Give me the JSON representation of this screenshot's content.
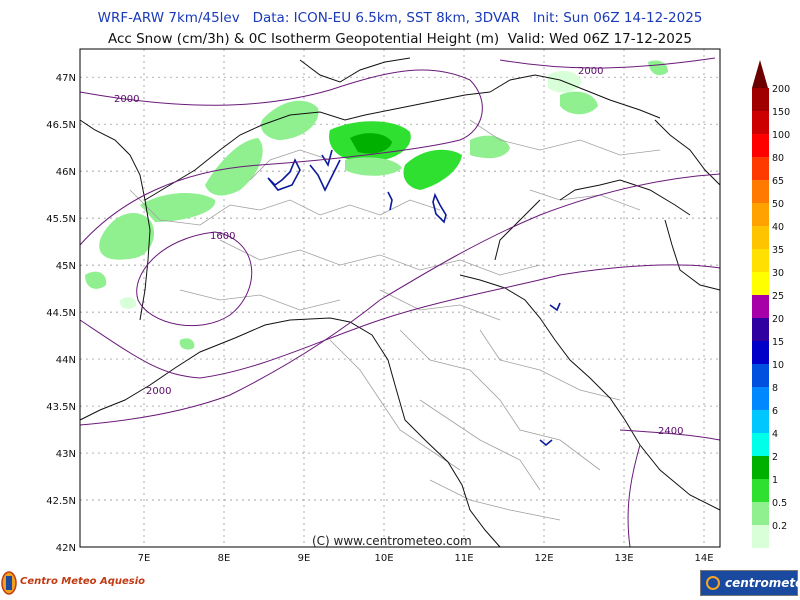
{
  "header": {
    "line1": "WRF-ARW 7km/45lev   Data: ICON-EU 6.5km, SST 8km, 3DVAR   Init: Sun 06Z 14-12-2025",
    "line2": "Acc Snow (cm/3h) & 0C Isotherm Geopotential Height (m)  Valid: Wed 06Z 17-12-2025"
  },
  "map": {
    "lat_labels": [
      "47N",
      "46.5N",
      "46N",
      "45.5N",
      "45N",
      "44.5N",
      "44N",
      "43.5N",
      "43N",
      "42.5N",
      "42N"
    ],
    "lon_labels": [
      "7E",
      "8E",
      "9E",
      "10E",
      "11E",
      "12E",
      "13E",
      "14E"
    ],
    "contour_labels": [
      "2000",
      "2000",
      "1600",
      "2000",
      "2400"
    ],
    "credit": "(C) www.centrometeo.com",
    "extent": {
      "lon": [
        6.2,
        14.2
      ],
      "lat": [
        42.0,
        47.3
      ]
    }
  },
  "legend": {
    "levels": [
      "200",
      "150",
      "100",
      "80",
      "65",
      "50",
      "40",
      "35",
      "30",
      "25",
      "20",
      "15",
      "10",
      "8",
      "6",
      "4",
      "2",
      "1",
      "0.5",
      "0.2"
    ],
    "colors": [
      "#a00000",
      "#cc0000",
      "#ff0000",
      "#ff3a00",
      "#ff7a00",
      "#ffa200",
      "#ffc400",
      "#ffe000",
      "#ffff00",
      "#a800a8",
      "#3000a0",
      "#0000c8",
      "#0050e0",
      "#0088ff",
      "#00c8ff",
      "#00ffe8",
      "#00b000",
      "#30e030",
      "#90f090",
      "#d8ffd8"
    ]
  },
  "logos": {
    "left": "Centro Meteo Aquesio",
    "right": "centrometeo"
  }
}
